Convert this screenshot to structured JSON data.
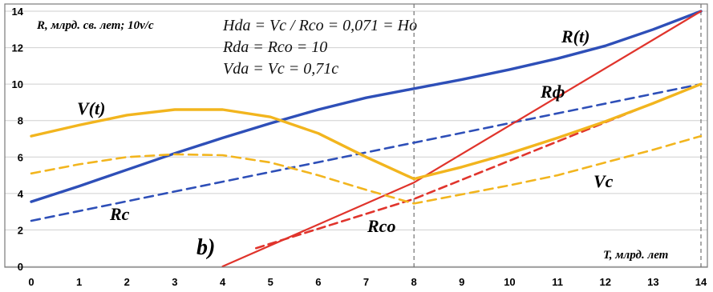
{
  "chart_data": {
    "type": "line",
    "xlabel": "T, млрд. лет",
    "ylabel": "R, млрд. св. лет; 10v/c",
    "xlim": [
      0,
      14
    ],
    "ylim": [
      0,
      14
    ],
    "x_ticks": [
      "0",
      "1",
      "2",
      "3",
      "4",
      "5",
      "6",
      "7",
      "8",
      "9",
      "10",
      "11",
      "12",
      "13",
      "14"
    ],
    "y_ticks": [
      "0",
      "2",
      "4",
      "6",
      "8",
      "10",
      "12",
      "14"
    ],
    "grid": "horizontal",
    "vertical_markers": [
      8,
      14
    ],
    "panel_label": "b)",
    "formulas": [
      "Hda = Vc / Rco = 0,071 = Ho",
      "Rda = Rco = 10",
      "Vda = Vc = 0,71c"
    ],
    "colors": {
      "blue": "#2e4fb8",
      "red": "#e0342c",
      "orange": "#f2b51e",
      "grid": "#cfcfcf"
    },
    "series": [
      {
        "name": "R(t)",
        "color": "#2e4fb8",
        "style": "solid",
        "points": [
          [
            0,
            3.55
          ],
          [
            1,
            4.4
          ],
          [
            2,
            5.3
          ],
          [
            3,
            6.2
          ],
          [
            4,
            7.05
          ],
          [
            5,
            7.85
          ],
          [
            6,
            8.6
          ],
          [
            7,
            9.25
          ],
          [
            8,
            9.75
          ],
          [
            9,
            10.25
          ],
          [
            10,
            10.8
          ],
          [
            11,
            11.4
          ],
          [
            12,
            12.1
          ],
          [
            13,
            13.0
          ],
          [
            14,
            14.0
          ]
        ]
      },
      {
        "name": "Rc",
        "color": "#2e4fb8",
        "style": "dashed",
        "points": [
          [
            0,
            2.5
          ],
          [
            14,
            10.0
          ]
        ]
      },
      {
        "name": "Rф",
        "color": "#e0342c",
        "style": "solid",
        "points": [
          [
            4,
            0
          ],
          [
            8,
            4.6
          ],
          [
            14,
            14.0
          ]
        ]
      },
      {
        "name": "",
        "color": "#e0342c",
        "style": "dashed",
        "points": [
          [
            4.7,
            1.0
          ],
          [
            8,
            3.7
          ],
          [
            14,
            10.0
          ]
        ]
      },
      {
        "name": "V(t)",
        "color": "#f2b51e",
        "style": "solid",
        "points": [
          [
            0,
            7.15
          ],
          [
            1,
            7.75
          ],
          [
            2,
            8.3
          ],
          [
            3,
            8.6
          ],
          [
            4,
            8.6
          ],
          [
            5,
            8.2
          ],
          [
            6,
            7.3
          ],
          [
            7,
            6.0
          ],
          [
            8,
            4.8
          ],
          [
            9,
            5.45
          ],
          [
            10,
            6.2
          ],
          [
            11,
            7.05
          ],
          [
            12,
            7.95
          ],
          [
            13,
            8.95
          ],
          [
            14,
            10.0
          ]
        ]
      },
      {
        "name": "Vc",
        "color": "#f2b51e",
        "style": "dashed",
        "points": [
          [
            0,
            5.1
          ],
          [
            1,
            5.6
          ],
          [
            2,
            6.0
          ],
          [
            3,
            6.15
          ],
          [
            4,
            6.1
          ],
          [
            5,
            5.7
          ],
          [
            6,
            5.0
          ],
          [
            7,
            4.2
          ],
          [
            8,
            3.45
          ],
          [
            9,
            3.95
          ],
          [
            10,
            4.45
          ],
          [
            11,
            5.0
          ],
          [
            12,
            5.7
          ],
          [
            13,
            6.4
          ],
          [
            14,
            7.15
          ]
        ]
      }
    ],
    "annotations": [
      "R(t)",
      "Rф",
      "V(t)",
      "Rc",
      "Rco",
      "Vc"
    ]
  }
}
